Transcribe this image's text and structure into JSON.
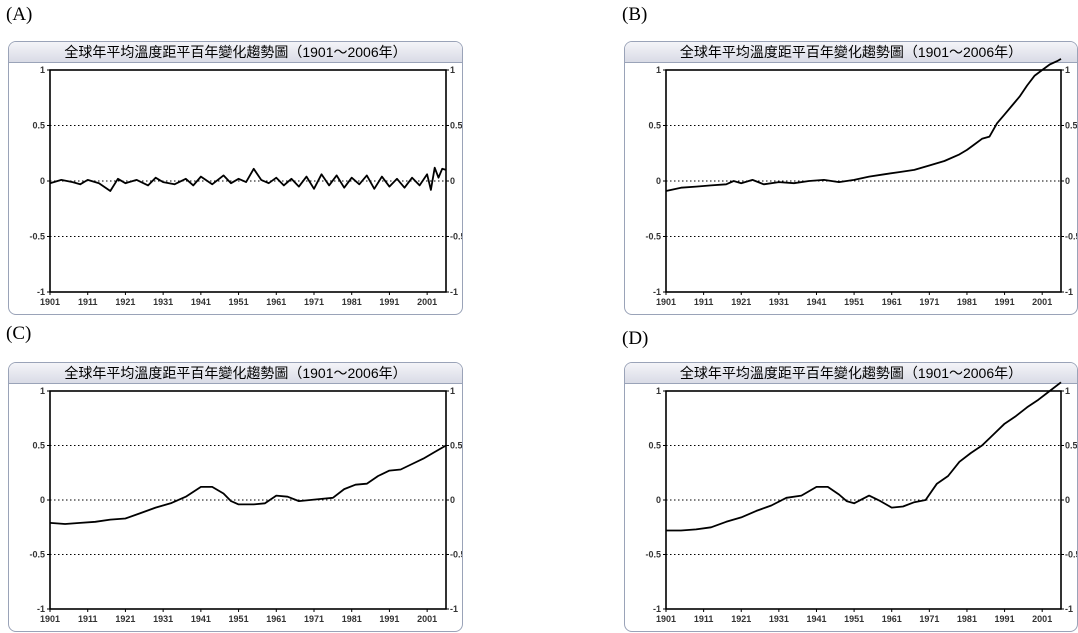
{
  "panels": [
    {
      "label": "(A)",
      "title": "全球年平均溫度距平百年變化趨勢圖（1901～2006年）"
    },
    {
      "label": "(B)",
      "title": "全球年平均溫度距平百年變化趨勢圖（1901～2006年）"
    },
    {
      "label": "(C)",
      "title": "全球年平均溫度距平百年變化趨勢圖（1901～2006年）"
    },
    {
      "label": "(D)",
      "title": "全球年平均溫度距平百年變化趨勢圖（1901～2006年）"
    }
  ],
  "chart_data": [
    {
      "type": "line",
      "title": "全球年平均溫度距平百年變化趨勢圖（1901～2006年）",
      "xlim": [
        1901,
        2006
      ],
      "ylim": [
        -1,
        1
      ],
      "xticks": [
        "1901",
        "1911",
        "1921",
        "1931",
        "1941",
        "1951",
        "1961",
        "1971",
        "1981",
        "1991",
        "2001"
      ],
      "yticks": [
        "1",
        "0.5",
        "0",
        "-0.5",
        "-1"
      ],
      "grid": "dotted horizontal at 0.5, 0, -0.5",
      "series": [
        {
          "x": [
            1901,
            1904,
            1907,
            1909,
            1911,
            1914,
            1917,
            1919,
            1921,
            1924,
            1927,
            1929,
            1931,
            1934,
            1937,
            1939,
            1941,
            1944,
            1947,
            1949,
            1951,
            1953,
            1955,
            1957,
            1959,
            1961,
            1963,
            1965,
            1967,
            1969,
            1971,
            1973,
            1975,
            1977,
            1979,
            1981,
            1983,
            1985,
            1987,
            1989,
            1991,
            1993,
            1995,
            1997,
            1999,
            2001,
            2002,
            2003,
            2004,
            2005,
            2006
          ],
          "values": [
            -0.02,
            0.01,
            -0.01,
            -0.03,
            0.01,
            -0.02,
            -0.09,
            0.02,
            -0.02,
            0.01,
            -0.04,
            0.03,
            -0.01,
            -0.03,
            0.02,
            -0.04,
            0.04,
            -0.03,
            0.05,
            -0.02,
            0.02,
            -0.01,
            0.11,
            0.01,
            -0.02,
            0.03,
            -0.04,
            0.02,
            -0.05,
            0.04,
            -0.07,
            0.06,
            -0.04,
            0.05,
            -0.06,
            0.03,
            -0.03,
            0.05,
            -0.07,
            0.04,
            -0.05,
            0.02,
            -0.06,
            0.03,
            -0.04,
            0.06,
            -0.08,
            0.12,
            0.03,
            0.11,
            0.1
          ]
        }
      ]
    },
    {
      "type": "line",
      "title": "全球年平均溫度距平百年變化趨勢圖（1901～2006年）",
      "xlim": [
        1901,
        2006
      ],
      "ylim": [
        -1,
        1
      ],
      "xticks": [
        "1901",
        "1911",
        "1921",
        "1931",
        "1941",
        "1951",
        "1961",
        "1971",
        "1981",
        "1991",
        "2001"
      ],
      "yticks": [
        "1",
        "0.5",
        "0",
        "-0.5",
        "-1"
      ],
      "grid": "dotted horizontal at 0.5, 0, -0.5",
      "series": [
        {
          "x": [
            1901,
            1905,
            1909,
            1913,
            1917,
            1919,
            1921,
            1924,
            1927,
            1931,
            1935,
            1939,
            1943,
            1947,
            1951,
            1955,
            1959,
            1963,
            1967,
            1971,
            1975,
            1979,
            1981,
            1983,
            1985,
            1987,
            1989,
            1991,
            1993,
            1995,
            1997,
            1999,
            2001,
            2003,
            2005,
            2006
          ],
          "values": [
            -0.09,
            -0.06,
            -0.05,
            -0.04,
            -0.03,
            0.0,
            -0.02,
            0.01,
            -0.03,
            -0.01,
            -0.02,
            0.0,
            0.01,
            -0.01,
            0.01,
            0.04,
            0.06,
            0.08,
            0.1,
            0.14,
            0.18,
            0.24,
            0.28,
            0.33,
            0.38,
            0.4,
            0.52,
            0.6,
            0.68,
            0.76,
            0.86,
            0.95,
            1.0,
            1.05,
            1.08,
            1.1
          ]
        }
      ]
    },
    {
      "type": "line",
      "title": "全球年平均溫度距平百年變化趨勢圖（1901～2006年）",
      "xlim": [
        1901,
        2006
      ],
      "ylim": [
        -1,
        1
      ],
      "xticks": [
        "1901",
        "1911",
        "1921",
        "1931",
        "1941",
        "1951",
        "1961",
        "1971",
        "1981",
        "1991",
        "2001"
      ],
      "yticks": [
        "1",
        "0.5",
        "0",
        "-0.5",
        "-1"
      ],
      "grid": "dotted horizontal at 0.5, 0, -0.5",
      "series": [
        {
          "x": [
            1901,
            1905,
            1909,
            1913,
            1917,
            1921,
            1925,
            1929,
            1933,
            1937,
            1941,
            1944,
            1947,
            1949,
            1951,
            1955,
            1958,
            1961,
            1964,
            1967,
            1970,
            1973,
            1976,
            1979,
            1982,
            1985,
            1988,
            1991,
            1994,
            1997,
            2000,
            2003,
            2006
          ],
          "values": [
            -0.21,
            -0.22,
            -0.21,
            -0.2,
            -0.18,
            -0.17,
            -0.12,
            -0.07,
            -0.03,
            0.03,
            0.12,
            0.12,
            0.06,
            -0.01,
            -0.04,
            -0.04,
            -0.03,
            0.04,
            0.03,
            -0.01,
            0.0,
            0.01,
            0.02,
            0.1,
            0.14,
            0.15,
            0.22,
            0.27,
            0.28,
            0.33,
            0.38,
            0.44,
            0.5
          ]
        }
      ]
    },
    {
      "type": "line",
      "title": "全球年平均溫度距平百年變化趨勢圖（1901～2006年）",
      "xlim": [
        1901,
        2006
      ],
      "ylim": [
        -1,
        1
      ],
      "xticks": [
        "1901",
        "1911",
        "1921",
        "1931",
        "1941",
        "1951",
        "1961",
        "1971",
        "1981",
        "1991",
        "2001"
      ],
      "yticks": [
        "1",
        "0.5",
        "0",
        "-0.5",
        "-1"
      ],
      "grid": "dotted horizontal at 0.5, 0, -0.5",
      "series": [
        {
          "x": [
            1901,
            1905,
            1909,
            1913,
            1917,
            1921,
            1925,
            1929,
            1933,
            1937,
            1941,
            1944,
            1947,
            1949,
            1951,
            1955,
            1958,
            1961,
            1964,
            1967,
            1970,
            1973,
            1976,
            1979,
            1982,
            1985,
            1988,
            1991,
            1994,
            1997,
            2000,
            2003,
            2006
          ],
          "values": [
            -0.28,
            -0.28,
            -0.27,
            -0.25,
            -0.2,
            -0.16,
            -0.1,
            -0.05,
            0.02,
            0.04,
            0.12,
            0.12,
            0.05,
            -0.01,
            -0.03,
            0.04,
            -0.01,
            -0.07,
            -0.06,
            -0.02,
            0.0,
            0.15,
            0.22,
            0.35,
            0.43,
            0.5,
            0.6,
            0.7,
            0.77,
            0.85,
            0.92,
            1.0,
            1.08
          ]
        }
      ]
    }
  ]
}
